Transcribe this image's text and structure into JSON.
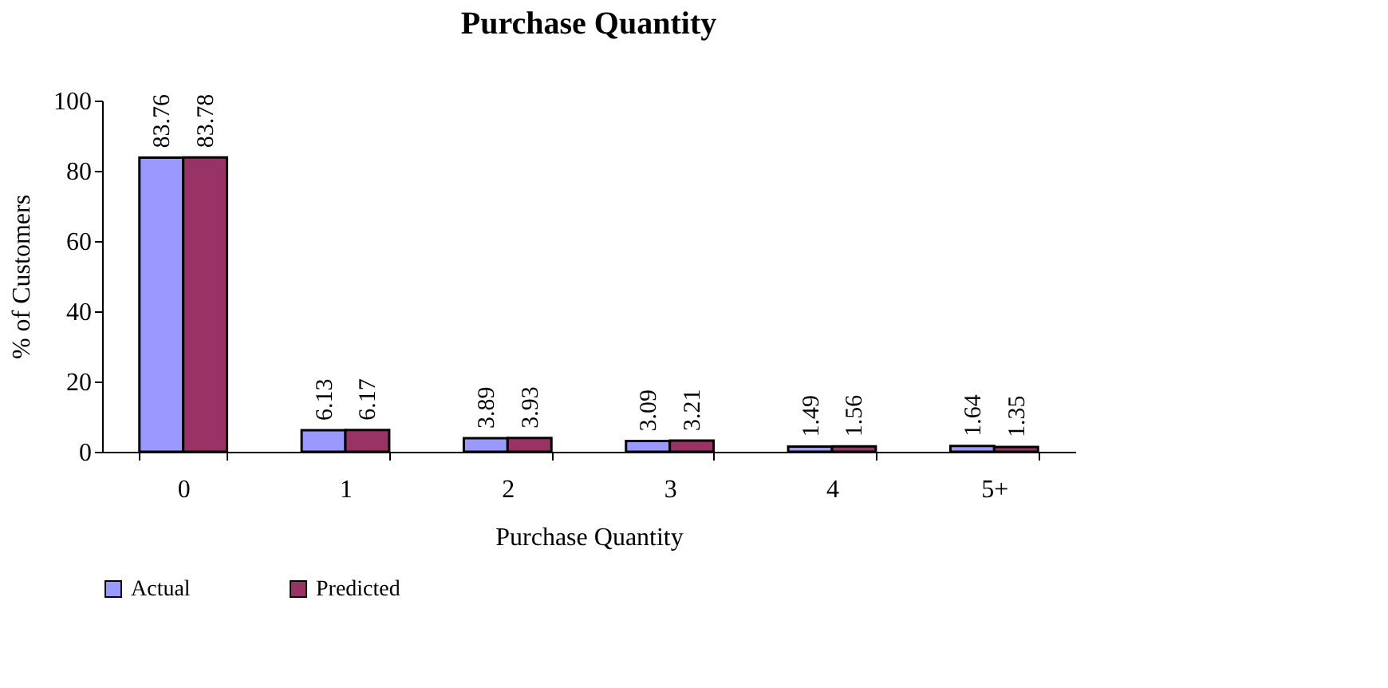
{
  "chart_data": {
    "type": "bar",
    "title": "Purchase Quantity",
    "xlabel": "Purchase Quantity",
    "ylabel": "% of Customers",
    "categories": [
      "0",
      "1",
      "2",
      "3",
      "4",
      "5+"
    ],
    "series": [
      {
        "name": "Actual",
        "color": "#9999ff",
        "values": [
          83.76,
          6.13,
          3.89,
          3.09,
          1.49,
          1.64
        ]
      },
      {
        "name": "Predicted",
        "color": "#993366",
        "values": [
          83.78,
          6.17,
          3.93,
          3.21,
          1.56,
          1.35
        ]
      }
    ],
    "ylim": [
      0,
      100
    ],
    "yticks": [
      0,
      20,
      40,
      60,
      80,
      100
    ],
    "data_labels": true,
    "grid": false,
    "legend": "bottom"
  }
}
